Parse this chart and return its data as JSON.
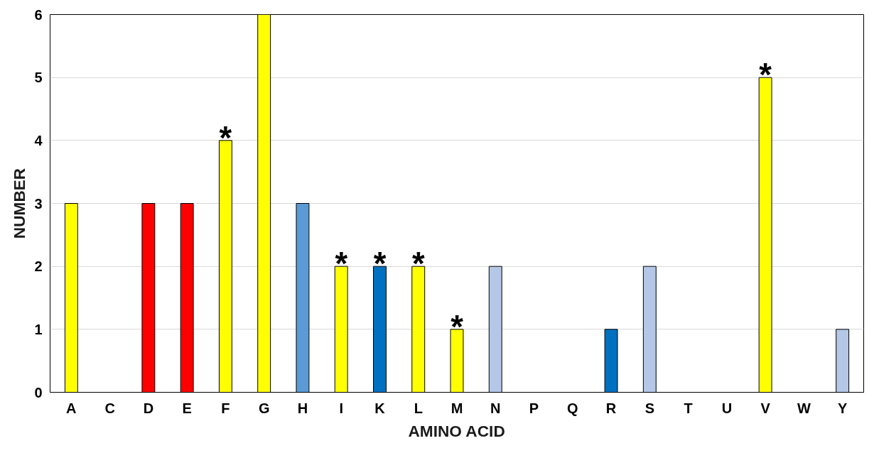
{
  "chart_data": {
    "type": "bar",
    "xlabel": "AMINO ACID",
    "ylabel": "NUMBER",
    "categories": [
      "A",
      "C",
      "D",
      "E",
      "F",
      "G",
      "H",
      "I",
      "K",
      "L",
      "M",
      "N",
      "P",
      "Q",
      "R",
      "S",
      "T",
      "U",
      "V",
      "W",
      "Y"
    ],
    "values": [
      3,
      0,
      3,
      3,
      4,
      6,
      3,
      2,
      2,
      2,
      1,
      2,
      0,
      0,
      1,
      2,
      0,
      0,
      5,
      0,
      1
    ],
    "colors": [
      "#ffff00",
      "#ffff00",
      "#ff0000",
      "#ff0000",
      "#ffff00",
      "#ffff00",
      "#5b9bd5",
      "#ffff00",
      "#0070c0",
      "#ffff00",
      "#ffff00",
      "#b4c7e7",
      "#ffff00",
      "#ffff00",
      "#0070c0",
      "#b4c7e7",
      "#ffff00",
      "#ffff00",
      "#ffff00",
      "#ffff00",
      "#b4c7e7"
    ],
    "ylim": [
      0,
      6
    ],
    "yticks": [
      0,
      1,
      2,
      3,
      4,
      5,
      6
    ],
    "grid": "y",
    "annotations": [
      {
        "text": "*",
        "x": "F",
        "y": 4
      },
      {
        "text": "*",
        "x": "I",
        "y": 2
      },
      {
        "text": "*",
        "x": "K",
        "y": 2
      },
      {
        "text": "*",
        "x": "L",
        "y": 2
      },
      {
        "text": "*",
        "x": "M",
        "y": 1
      },
      {
        "text": "*",
        "x": "V",
        "y": 5
      }
    ]
  }
}
